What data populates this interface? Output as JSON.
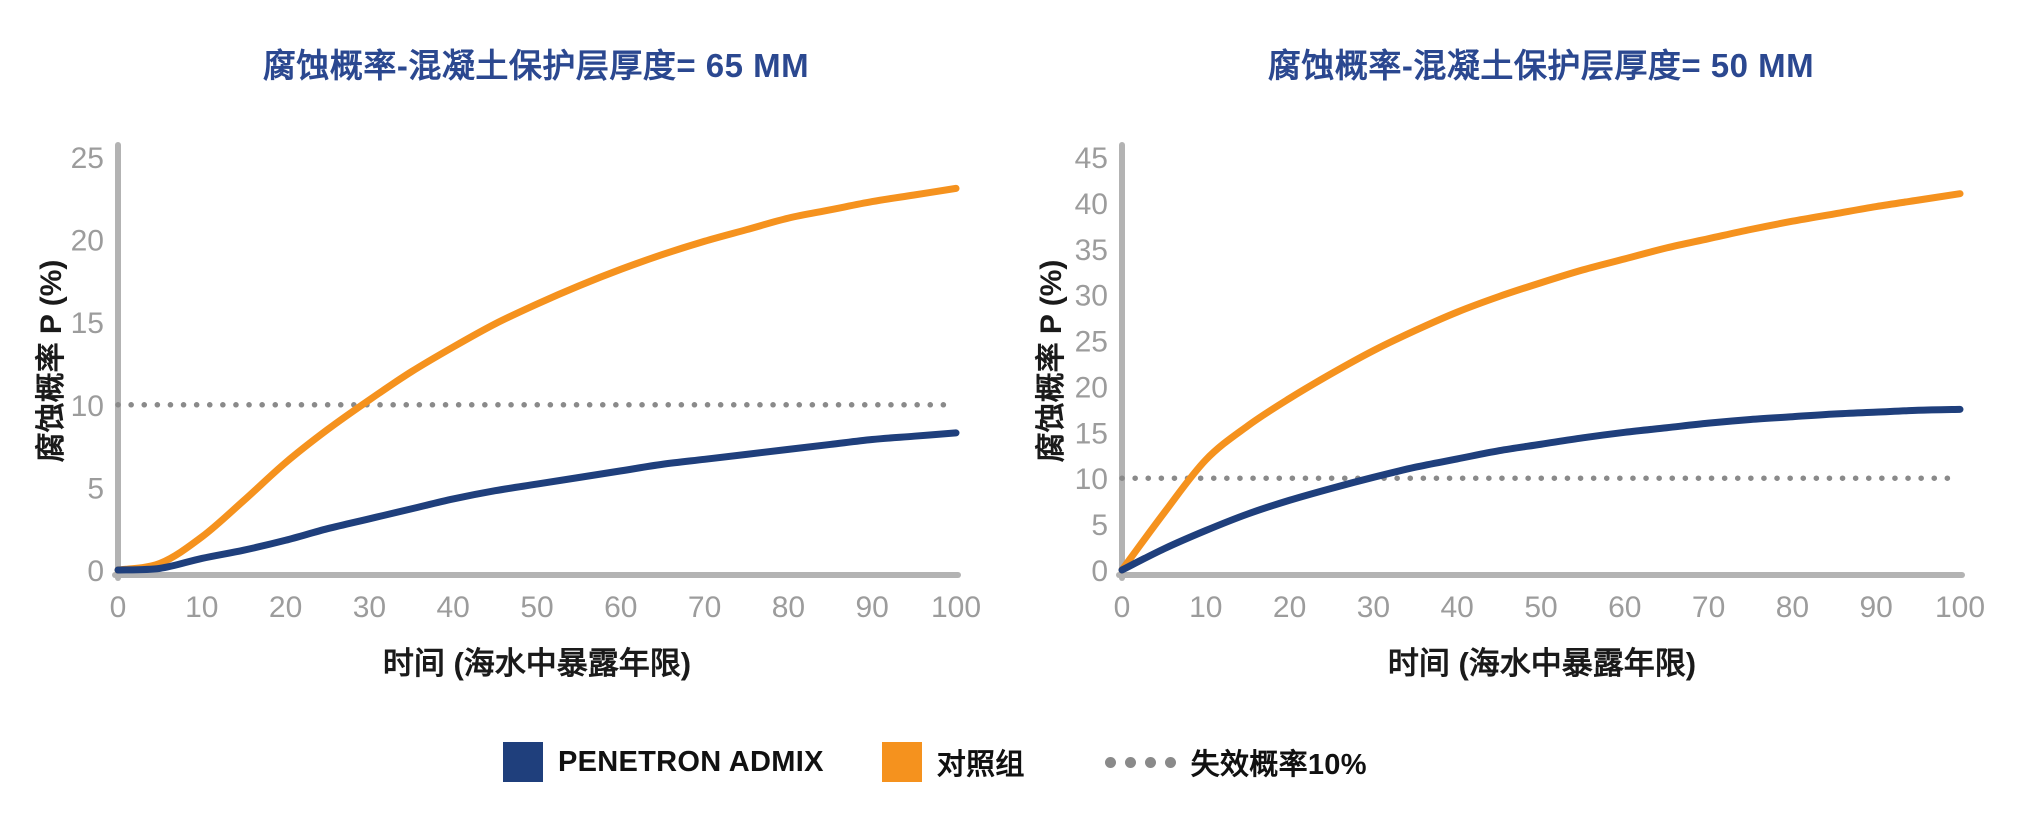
{
  "page": {
    "background": "#ffffff"
  },
  "colors": {
    "admix_blue": "#1f3f7c",
    "control_orange": "#f5921e",
    "threshold_gray": "#8a8a8a",
    "axis_gray": "#b3b3b3",
    "tick_gray": "#9c9c9c",
    "title_navy": "#2b4890",
    "label_black": "#1a1a1a"
  },
  "legend": {
    "items": [
      {
        "label": "PENETRON ADMIX",
        "swatch": "square",
        "color": "#1f3f7c"
      },
      {
        "label": "对照组",
        "swatch": "square",
        "color": "#f5921e"
      },
      {
        "label": "失效概率10%",
        "swatch": "dots",
        "color": "#8a8a8a"
      }
    ]
  },
  "chart_data": [
    {
      "type": "line",
      "title": "腐蚀概率-混凝土保护层厚度= 65 MM",
      "xlabel": "时间 (海水中暴露年限)",
      "ylabel": "腐蚀概率 P (%)",
      "xlim": [
        0,
        100
      ],
      "ylim": [
        0,
        25
      ],
      "xticks": [
        0,
        10,
        20,
        30,
        40,
        50,
        60,
        70,
        80,
        90,
        100
      ],
      "yticks": [
        0,
        5,
        10,
        15,
        20,
        25
      ],
      "grid": false,
      "threshold": {
        "value": 10,
        "label": "失效概率10%",
        "style": "dotted"
      },
      "x": [
        0,
        5,
        10,
        15,
        20,
        25,
        30,
        35,
        40,
        45,
        50,
        55,
        60,
        65,
        70,
        75,
        80,
        85,
        90,
        95,
        100
      ],
      "series": [
        {
          "name": "对照组",
          "color": "#f5921e",
          "values": [
            0,
            0.4,
            2.0,
            4.2,
            6.5,
            8.5,
            10.3,
            12.0,
            13.5,
            14.9,
            16.1,
            17.2,
            18.2,
            19.1,
            19.9,
            20.6,
            21.3,
            21.8,
            22.3,
            22.7,
            23.1
          ]
        },
        {
          "name": "PENETRON ADMIX",
          "color": "#1f3f7c",
          "values": [
            0,
            0.1,
            0.7,
            1.2,
            1.8,
            2.5,
            3.1,
            3.7,
            4.3,
            4.8,
            5.2,
            5.6,
            6.0,
            6.4,
            6.7,
            7.0,
            7.3,
            7.6,
            7.9,
            8.1,
            8.3
          ]
        }
      ]
    },
    {
      "type": "line",
      "title": "腐蚀概率-混凝土保护层厚度= 50 MM",
      "xlabel": "时间 (海水中暴露年限)",
      "ylabel": "腐蚀概率 P (%)",
      "xlim": [
        0,
        100
      ],
      "ylim": [
        0,
        45
      ],
      "xticks": [
        0,
        10,
        20,
        30,
        40,
        50,
        60,
        70,
        80,
        90,
        100
      ],
      "yticks": [
        0,
        5,
        10,
        15,
        20,
        25,
        30,
        35,
        40,
        45
      ],
      "grid": false,
      "threshold": {
        "value": 10,
        "label": "失效概率10%",
        "style": "dotted"
      },
      "x": [
        0,
        5,
        10,
        15,
        20,
        25,
        30,
        35,
        40,
        45,
        50,
        55,
        60,
        65,
        70,
        75,
        80,
        85,
        90,
        95,
        100
      ],
      "series": [
        {
          "name": "对照组",
          "color": "#f5921e",
          "values": [
            0,
            6.2,
            12.0,
            15.7,
            18.7,
            21.4,
            23.9,
            26.1,
            28.1,
            29.8,
            31.3,
            32.7,
            33.9,
            35.1,
            36.1,
            37.1,
            38.0,
            38.8,
            39.6,
            40.3,
            41.0
          ]
        },
        {
          "name": "PENETRON ADMIX",
          "color": "#1f3f7c",
          "values": [
            0,
            2.3,
            4.3,
            6.1,
            7.6,
            8.9,
            10.1,
            11.2,
            12.1,
            13.0,
            13.7,
            14.4,
            15.0,
            15.5,
            16.0,
            16.4,
            16.7,
            17.0,
            17.2,
            17.4,
            17.5
          ]
        }
      ]
    }
  ]
}
